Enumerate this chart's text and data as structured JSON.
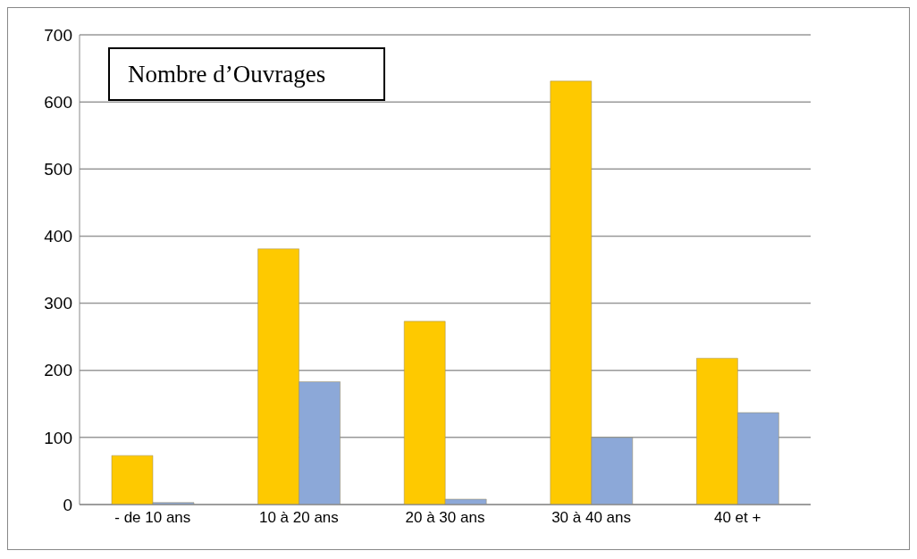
{
  "chart_data": {
    "type": "bar",
    "title": "Nombre d’Ouvrages",
    "categories": [
      "- de 10 ans",
      "10 à 20 ans",
      "20 à 30 ans",
      "30 à 40 ans",
      "40 et +"
    ],
    "series": [
      {
        "color": "#fec900",
        "values": [
          73,
          381,
          273,
          631,
          218
        ]
      },
      {
        "color": "#8ca8d8",
        "values": [
          3,
          183,
          8,
          100,
          137
        ]
      }
    ],
    "ylim": [
      0,
      700
    ],
    "yticks": [
      0,
      100,
      200,
      300,
      400,
      500,
      600,
      700
    ],
    "grid": "y",
    "legend": false
  }
}
